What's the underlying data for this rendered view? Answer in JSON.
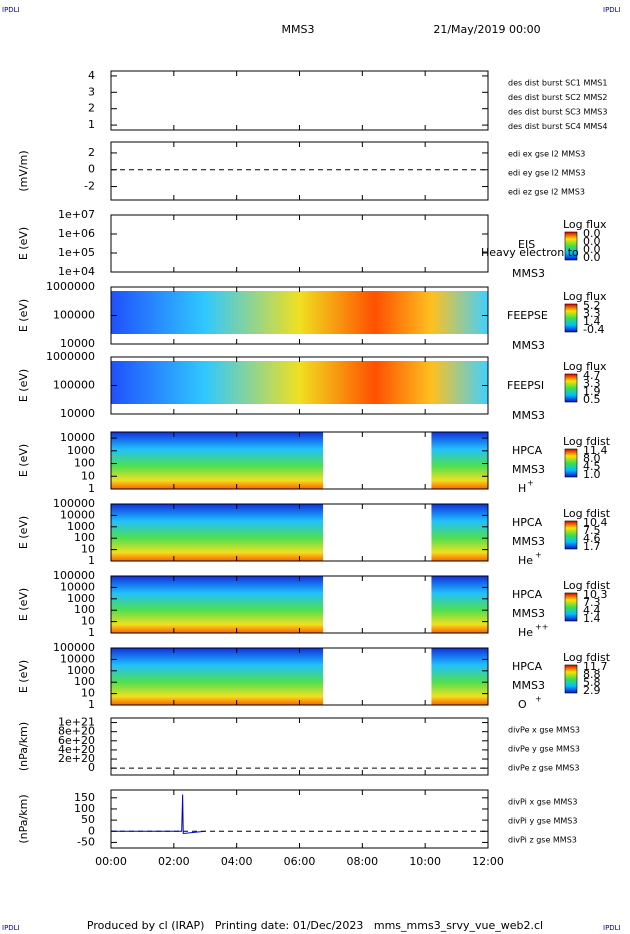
{
  "header": {
    "corner_tl": "IPDLI",
    "corner_tr": "IPDLI",
    "spacecraft": "MMS3",
    "date": "21/May/2019 00:00"
  },
  "xaxis": {
    "xlim": [
      0,
      12
    ],
    "xticks": [
      {
        "value": 0,
        "label": "00:00"
      },
      {
        "value": 2,
        "label": "02:00"
      },
      {
        "value": 4,
        "label": "04:00"
      },
      {
        "value": 6,
        "label": "06:00"
      },
      {
        "value": 8,
        "label": "08:00"
      },
      {
        "value": 10,
        "label": "10:00"
      },
      {
        "value": 12,
        "label": "12:00"
      }
    ]
  },
  "panels": [
    {
      "scale": "linear",
      "ylim": [
        0.7,
        4.3
      ],
      "yticks": [
        1,
        2,
        3,
        4
      ],
      "side": [
        {
          "text": "des dist burst SC1 MMS1",
          "color": "#0000cc"
        },
        {
          "text": "des dist burst SC2 MMS2",
          "color": "#cc00cc"
        },
        {
          "text": "des dist burst SC3 MMS3",
          "color": "#dd0000"
        },
        {
          "text": "des dist burst SC4 MMS4",
          "color": "#00bb00"
        }
      ]
    },
    {
      "ylabel": "(mV/m)",
      "scale": "linear",
      "ylim": [
        -3.6,
        3.3
      ],
      "yticks": [
        -2,
        0,
        2
      ],
      "side": [
        {
          "text": "edi ex gse l2 MMS3",
          "color": "#dd0000"
        },
        {
          "text": "edi ey gse l2 MMS3",
          "color": "#00bb00"
        },
        {
          "text": "edi ez gse l2 MMS3",
          "color": "#0000cc"
        }
      ]
    },
    {
      "ylabel": "E (eV)",
      "scale": "log",
      "ylim": [
        10000,
        10000000
      ],
      "yticks": [
        {
          "value": 10000,
          "label": "1e+04"
        },
        {
          "value": 100000,
          "label": "1e+05"
        },
        {
          "value": 1000000,
          "label": "1e+06"
        },
        {
          "value": 10000000,
          "label": "1e+07"
        }
      ],
      "names": [
        "EIS",
        "MMS3"
      ],
      "note": "Heavy electron to",
      "colorbar": {
        "title": "Log flux",
        "labels": [
          "0.0",
          "0.0",
          "0.0",
          "0.0"
        ]
      }
    },
    {
      "ylabel": "E (eV)",
      "scale": "log",
      "ylim": [
        10000,
        1000000
      ],
      "yticks": [
        10000,
        100000,
        1000000
      ],
      "names": [
        "FEEPSE",
        "MMS3"
      ],
      "colorbar": {
        "title": "Log flux",
        "labels": [
          "5.2",
          "3.3",
          "1.4",
          "-0.4"
        ]
      }
    },
    {
      "ylabel": "E (eV)",
      "scale": "log",
      "ylim": [
        10000,
        1000000
      ],
      "yticks": [
        10000,
        100000,
        1000000
      ],
      "names": [
        "FEEPSI",
        "MMS3"
      ],
      "colorbar": {
        "title": "Log flux",
        "labels": [
          "4.7",
          "3.3",
          "1.9",
          "0.5"
        ]
      }
    },
    {
      "ylabel": "E (eV)",
      "scale": "log",
      "ylim": [
        1,
        30000
      ],
      "yticks": [
        1,
        10,
        100,
        1000,
        10000
      ],
      "names": [
        "HPCA",
        "MMS3"
      ],
      "ion": "H",
      "charge": "+",
      "colorbar": {
        "title": "Log fdist",
        "labels": [
          "11.4",
          "8.0",
          "4.5",
          "1.0"
        ]
      }
    },
    {
      "ylabel": "E (eV)",
      "scale": "log",
      "ylim": [
        1,
        100000
      ],
      "yticks": [
        1,
        10,
        100,
        1000,
        10000,
        100000
      ],
      "names": [
        "HPCA",
        "MMS3"
      ],
      "ion": "He",
      "charge": "+",
      "colorbar": {
        "title": "Log fdist",
        "labels": [
          "10.4",
          "7.5",
          "4.6",
          "1.7"
        ]
      }
    },
    {
      "ylabel": "E (eV)",
      "scale": "log",
      "ylim": [
        1,
        100000
      ],
      "yticks": [
        1,
        10,
        100,
        1000,
        10000,
        100000
      ],
      "names": [
        "HPCA",
        "MMS3"
      ],
      "ion": "He",
      "charge": "++",
      "colorbar": {
        "title": "Log fdist",
        "labels": [
          "10.3",
          "7.3",
          "4.4",
          "1.4"
        ]
      }
    },
    {
      "ylabel": "E (eV)",
      "scale": "log",
      "ylim": [
        1,
        100000
      ],
      "yticks": [
        1,
        10,
        100,
        1000,
        10000,
        100000
      ],
      "names": [
        "HPCA",
        "MMS3"
      ],
      "ion": "O",
      "charge": "+",
      "colorbar": {
        "title": "Log fdist",
        "labels": [
          "11.7",
          "8.8",
          "5.8",
          "2.9"
        ]
      }
    },
    {
      "ylabel": "(nPa/km)",
      "scale": "linear",
      "ylim": [
        -1.5e+20,
        1.1e+21
      ],
      "yticks": [
        0,
        {
          "value": 2e+20,
          "label": "2e+20"
        },
        {
          "value": 4e+20,
          "label": "4e+20"
        },
        {
          "value": 6e+20,
          "label": "6e+20"
        },
        {
          "value": 8e+20,
          "label": "8e+20"
        },
        {
          "value": 1e+21,
          "label": "1e+21"
        }
      ],
      "side": [
        {
          "text": "divPe x gse MMS3",
          "color": "#dd0000"
        },
        {
          "text": "divPe y gse MMS3",
          "color": "#00bb00"
        },
        {
          "text": "divPe z gse MMS3",
          "color": "#0000cc"
        }
      ]
    },
    {
      "ylabel": "(nPa/km)",
      "scale": "linear",
      "ylim": [
        -75,
        185
      ],
      "yticks": [
        -50,
        0,
        50,
        100,
        150
      ],
      "side": [
        {
          "text": "divPi x gse MMS3",
          "color": "#dd0000"
        },
        {
          "text": "divPi y gse MMS3",
          "color": "#00bb00"
        },
        {
          "text": "divPi z gse MMS3",
          "color": "#0000cc"
        }
      ]
    }
  ],
  "footer": {
    "text": "Produced by cl (IRAP)   Printing date: 01/Dec/2023   mms_mms3_srvy_vue_web2.cl",
    "corner_bl": "IPDLI",
    "corner_br": "IPDLI"
  }
}
